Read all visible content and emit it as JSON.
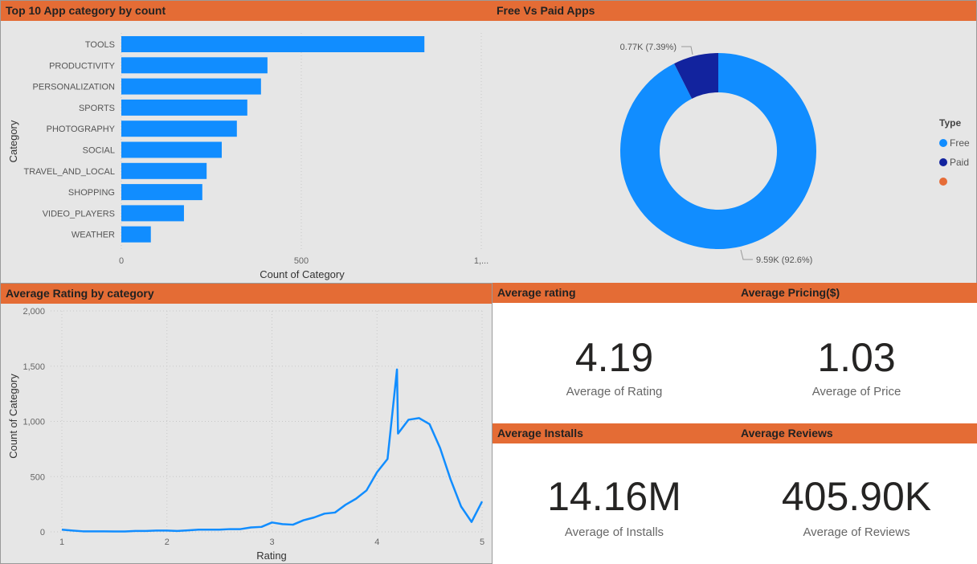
{
  "colors": {
    "header": "#e46c35",
    "bar": "#118dff",
    "free": "#118dff",
    "paid": "#12239e",
    "blank": "#e66c37",
    "line": "#118dff"
  },
  "chart_data": [
    {
      "type": "bar",
      "title": "Top 10 App category by count",
      "xlabel": "Count of Category",
      "ylabel": "Category",
      "xlim": [
        0,
        1000
      ],
      "xticks": [
        "0",
        "500",
        "1,..."
      ],
      "categories": [
        "TOOLS",
        "PRODUCTIVITY",
        "PERSONALIZATION",
        "SPORTS",
        "PHOTOGRAPHY",
        "SOCIAL",
        "TRAVEL_AND_LOCAL",
        "SHOPPING",
        "VIDEO_PLAYERS",
        "WEATHER"
      ],
      "values": [
        842,
        406,
        388,
        350,
        321,
        279,
        237,
        225,
        174,
        82
      ],
      "grid": true
    },
    {
      "type": "pie",
      "title": "Free Vs Paid Apps",
      "donut": true,
      "legend_title": "Type",
      "legend_position": "right",
      "slices": [
        {
          "name": "Free",
          "value": 9590,
          "label": "9.59K (92.6%)",
          "percent": 92.6
        },
        {
          "name": "Paid",
          "value": 770,
          "label": "0.77K (7.39%)",
          "percent": 7.39
        },
        {
          "name": "",
          "value": 0,
          "label": ""
        }
      ]
    },
    {
      "type": "line",
      "title": "Average Rating by category",
      "xlabel": "Rating",
      "ylabel": "Count of Category",
      "xlim": [
        1,
        5
      ],
      "ylim": [
        0,
        2000
      ],
      "xticks": [
        "1",
        "2",
        "3",
        "4",
        "5"
      ],
      "yticks": [
        "0",
        "500",
        "1,000",
        "1,500",
        "2,000"
      ],
      "grid": true,
      "x": [
        1.0,
        1.1,
        1.2,
        1.3,
        1.4,
        1.5,
        1.6,
        1.7,
        1.8,
        1.9,
        2.0,
        2.1,
        2.2,
        2.3,
        2.4,
        2.5,
        2.6,
        2.7,
        2.8,
        2.9,
        3.0,
        3.1,
        3.2,
        3.3,
        3.4,
        3.5,
        3.6,
        3.7,
        3.8,
        3.9,
        4.0,
        4.1,
        4.19,
        4.2,
        4.3,
        4.4,
        4.5,
        4.6,
        4.7,
        4.8,
        4.9,
        5.0
      ],
      "y": [
        20,
        12,
        5,
        5,
        5,
        4,
        4,
        8,
        8,
        12,
        12,
        8,
        14,
        20,
        20,
        20,
        25,
        25,
        40,
        45,
        85,
        70,
        65,
        105,
        130,
        165,
        175,
        245,
        300,
        375,
        540,
        660,
        1470,
        890,
        1015,
        1030,
        975,
        760,
        475,
        230,
        90,
        275
      ]
    }
  ],
  "kpis": [
    {
      "title": "Average rating",
      "value": "4.19",
      "label": "Average of Rating"
    },
    {
      "title": "Average Pricing($)",
      "value": "1.03",
      "label": "Average of Price"
    },
    {
      "title": "Average Installs",
      "value": "14.16M",
      "label": "Average of Installs"
    },
    {
      "title": "Average Reviews",
      "value": "405.90K",
      "label": "Average of Reviews"
    }
  ]
}
